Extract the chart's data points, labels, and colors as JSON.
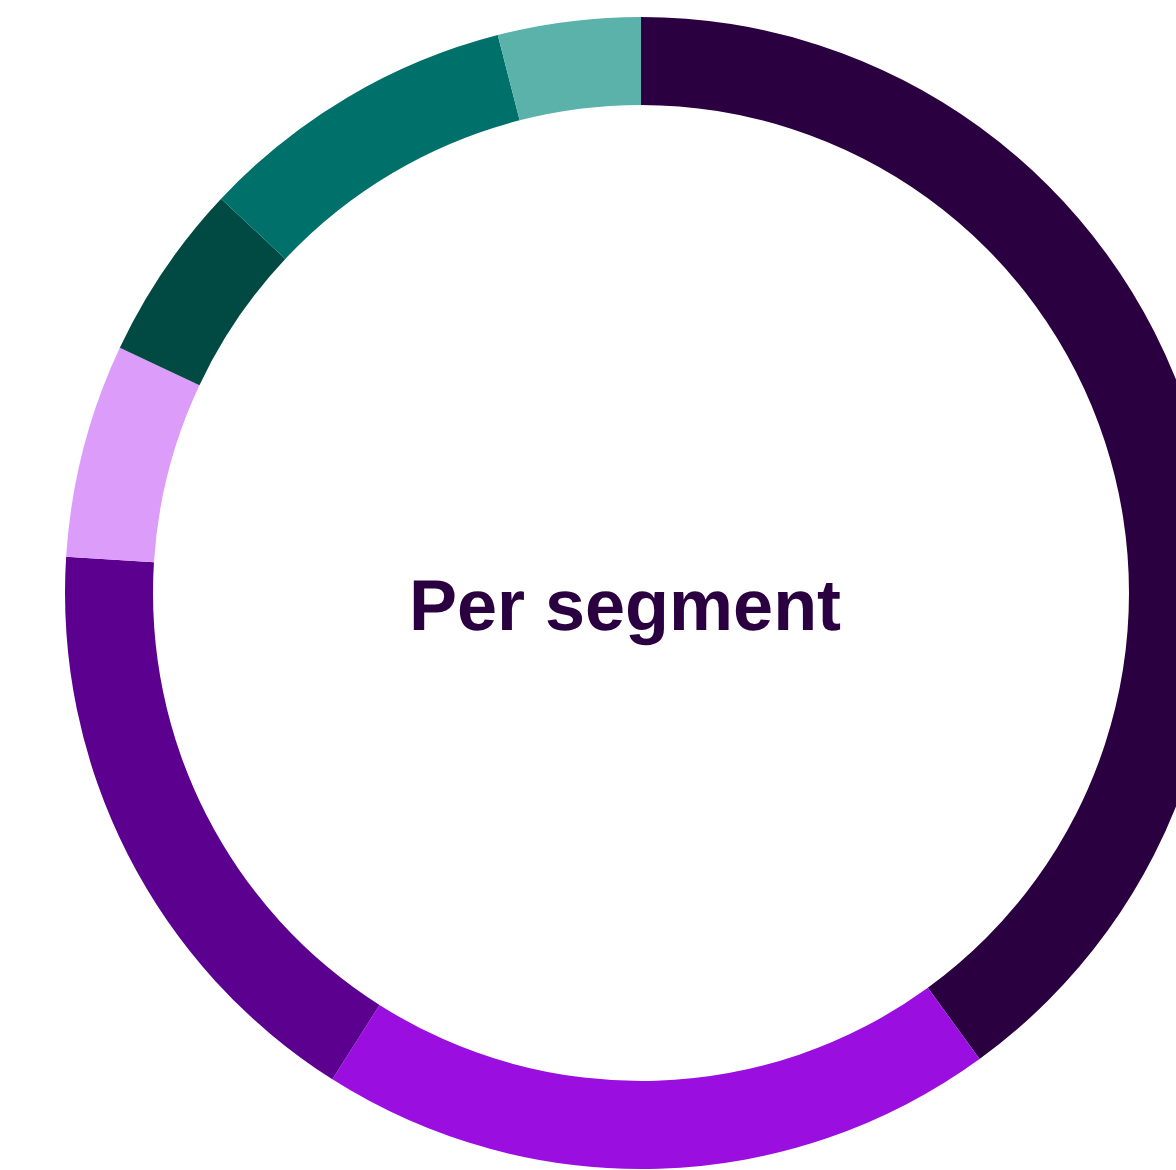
{
  "chart_data": {
    "type": "donut",
    "title": "Per segment",
    "categories": [
      null,
      null,
      null,
      null,
      null,
      null,
      null
    ],
    "values": [
      40,
      19,
      17,
      6,
      5,
      9,
      4
    ],
    "colors": [
      "#2b0040",
      "#9b0ee0",
      "#5c0090",
      "#dc9cfa",
      "#004a43",
      "#00706a",
      "#5ab2aa"
    ]
  }
}
